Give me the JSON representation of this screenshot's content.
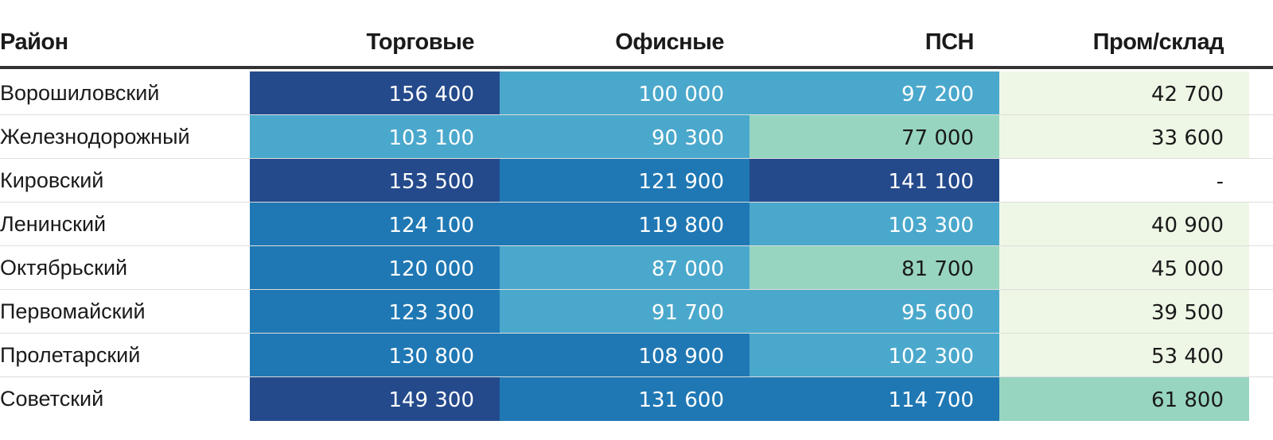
{
  "chart_data": {
    "type": "table",
    "columns": [
      "Район",
      "Торговые",
      "Офисные",
      "ПСН",
      "Пром/склад"
    ],
    "rows": [
      {
        "district": "Ворошиловский",
        "values": [
          "156 400",
          "100 000",
          "97 200",
          "42 700"
        ]
      },
      {
        "district": "Железнодорожный",
        "values": [
          "103 100",
          "90 300",
          "77 000",
          "33 600"
        ]
      },
      {
        "district": "Кировский",
        "values": [
          "153 500",
          "121 900",
          "141 100",
          "-"
        ]
      },
      {
        "district": "Ленинский",
        "values": [
          "124 100",
          "119 800",
          "103 300",
          "40 900"
        ]
      },
      {
        "district": "Октябрьский",
        "values": [
          "120 000",
          "87 000",
          "81 700",
          "45 000"
        ]
      },
      {
        "district": "Первомайский",
        "values": [
          "123 300",
          "91 700",
          "95 600",
          "39 500"
        ]
      },
      {
        "district": "Пролетарский",
        "values": [
          "130 800",
          "108 900",
          "102 300",
          "53 400"
        ]
      },
      {
        "district": "Советский",
        "values": [
          "149 300",
          "131 600",
          "114 700",
          "61 800"
        ]
      }
    ],
    "colors": {
      "darkest": "#244a8c",
      "dark": "#1f78b4",
      "mid": "#4aa8cc",
      "light": "#97d5c0",
      "lightest": "#eef7e6",
      "empty": "#ffffff",
      "text_dark_bg": "#ffffff",
      "text_light_bg": "#1a1a1a"
    }
  }
}
